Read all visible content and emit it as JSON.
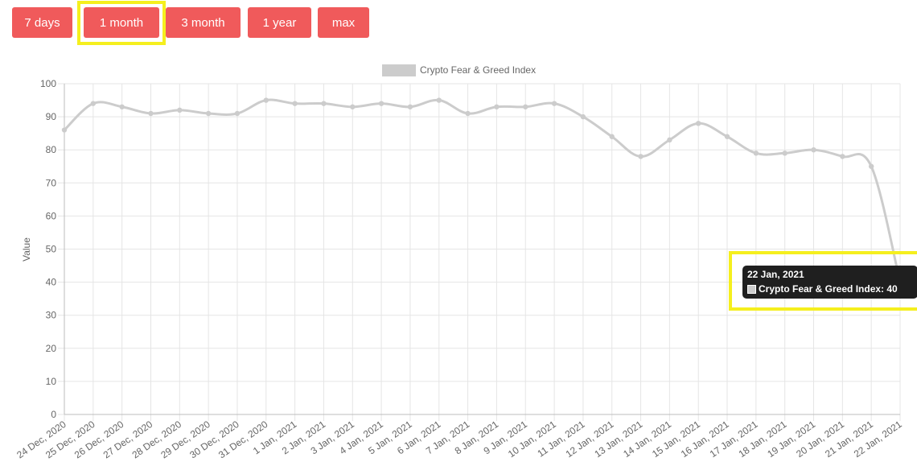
{
  "range_buttons": [
    {
      "label": "7 days",
      "selected": false
    },
    {
      "label": "1 month",
      "selected": true
    },
    {
      "label": "3 month",
      "selected": false
    },
    {
      "label": "1 year",
      "selected": false
    },
    {
      "label": "max",
      "selected": false
    }
  ],
  "colors": {
    "button": "#f05a5b",
    "highlight": "#f5ef1e",
    "series_line": "#cccccc",
    "grid": "#e5e5e5",
    "tooltip_bg": "#1f1f1f"
  },
  "tooltip": {
    "title": "22 Jan, 2021",
    "body": "Crypto Fear & Greed Index: 40"
  },
  "chart_data": {
    "type": "line",
    "title": "",
    "xlabel": "",
    "ylabel": "Value",
    "ylim": [
      0,
      100
    ],
    "yticks": [
      0,
      10,
      20,
      30,
      40,
      50,
      60,
      70,
      80,
      90,
      100
    ],
    "grid": true,
    "legend_position": "top-center",
    "categories": [
      "24 Dec, 2020",
      "25 Dec, 2020",
      "26 Dec, 2020",
      "27 Dec, 2020",
      "28 Dec, 2020",
      "29 Dec, 2020",
      "30 Dec, 2020",
      "31 Dec, 2020",
      "1 Jan, 2021",
      "2 Jan, 2021",
      "3 Jan, 2021",
      "4 Jan, 2021",
      "5 Jan, 2021",
      "6 Jan, 2021",
      "7 Jan, 2021",
      "8 Jan, 2021",
      "9 Jan, 2021",
      "10 Jan, 2021",
      "11 Jan, 2021",
      "12 Jan, 2021",
      "13 Jan, 2021",
      "14 Jan, 2021",
      "15 Jan, 2021",
      "16 Jan, 2021",
      "17 Jan, 2021",
      "18 Jan, 2021",
      "19 Jan, 2021",
      "20 Jan, 2021",
      "21 Jan, 2021",
      "22 Jan, 2021"
    ],
    "series": [
      {
        "name": "Crypto Fear & Greed Index",
        "values": [
          86,
          94,
          93,
          91,
          92,
          91,
          91,
          95,
          94,
          94,
          93,
          94,
          93,
          95,
          91,
          93,
          93,
          94,
          90,
          84,
          78,
          83,
          88,
          84,
          79,
          79,
          80,
          78,
          75,
          40
        ]
      }
    ]
  }
}
